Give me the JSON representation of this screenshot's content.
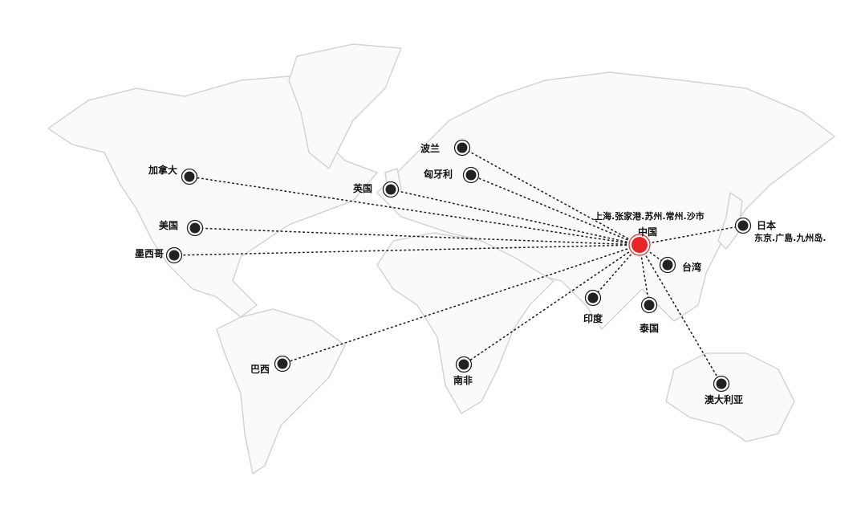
{
  "hub": {
    "name": "中国",
    "cities": "上海.张家港.苏州.常州.沙市",
    "color": "#e8262a"
  },
  "destinations": [
    {
      "name": "加拿大"
    },
    {
      "name": "英国"
    },
    {
      "name": "波兰"
    },
    {
      "name": "匈牙利"
    },
    {
      "name": "美国"
    },
    {
      "name": "墨西哥"
    },
    {
      "name": "巴西"
    },
    {
      "name": "南非"
    },
    {
      "name": "印度"
    },
    {
      "name": "泰国"
    },
    {
      "name": "台湾"
    },
    {
      "name": "澳大利亚"
    },
    {
      "name": "日本",
      "cities": "东京.广島.九州岛."
    }
  ],
  "colors": {
    "marker": "#222222",
    "land_outline": "#d6d6d6",
    "route": "#222222"
  }
}
